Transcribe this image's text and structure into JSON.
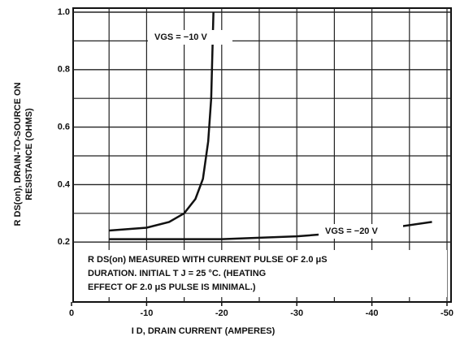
{
  "chart_data": {
    "type": "line",
    "y_label": [
      "R DS(on), DRAIN-TO-SOURCE ON",
      "RESISTANCE (OHMS)"
    ],
    "x_label": "I D, DRAIN CURRENT (AMPERES)",
    "xlim": [
      0,
      -50
    ],
    "xticks": [
      0,
      -10,
      -20,
      -30,
      -40,
      -50
    ],
    "xminor_ticks": [
      -5,
      -15,
      -25,
      -35,
      -45
    ],
    "ylim": [
      0,
      1
    ],
    "yticks": [
      0.2,
      0.4,
      0.6,
      0.8,
      {
        "value": 1,
        "label": "1.0"
      }
    ],
    "yminor_ticks": [
      0.3,
      0.5,
      0.7,
      0.9
    ],
    "grid": true,
    "series": [
      {
        "name": "VGS = −10 V",
        "color": "#111111",
        "x": [
          -5,
          -10,
          -13,
          -15,
          -16.5,
          -17.5,
          -18.2,
          -18.6,
          -18.9
        ],
        "values": [
          0.24,
          0.25,
          0.27,
          0.3,
          0.35,
          0.42,
          0.55,
          0.7,
          1.0
        ]
      },
      {
        "name": "VGS = −20 V",
        "color": "#111111",
        "x": [
          -5,
          -20,
          -30,
          -40,
          -48
        ],
        "values": [
          0.21,
          0.21,
          0.22,
          0.24,
          0.27
        ]
      }
    ],
    "note": [
      "R DS(on) MEASURED WITH CURRENT PULSE OF 2.0 μS",
      "DURATION. INITIAL T J = 25 °C. (HEATING",
      "EFFECT OF 2.0 μS PULSE IS MINIMAL.)"
    ]
  }
}
